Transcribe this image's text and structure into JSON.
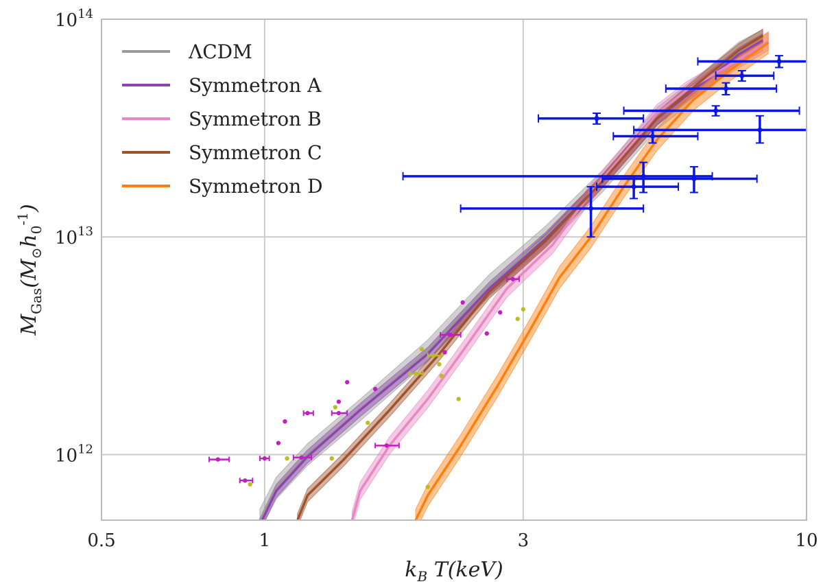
{
  "chart_data": {
    "type": "line",
    "xlabel": "k_B T(keV)",
    "ylabel": "M_Gas(M_⊙ h_0^-1)",
    "x_scale": "log",
    "y_scale": "log",
    "xlim": [
      0.5,
      10
    ],
    "ylim": [
      500000000000.0,
      100000000000000.0
    ],
    "x_ticks": [
      0.5,
      1,
      3,
      10
    ],
    "x_tick_labels": [
      "0.5",
      "1",
      "3",
      "10"
    ],
    "y_ticks": [
      1000000000000.0,
      10000000000000.0,
      100000000000000.0
    ],
    "y_tick_labels": [
      {
        "base": "10",
        "exp": "12"
      },
      {
        "base": "10",
        "exp": "13"
      },
      {
        "base": "10",
        "exp": "14"
      }
    ],
    "grid": true,
    "legend_position": "top-left",
    "series": [
      {
        "name": "ΛCDM",
        "color": "#999999",
        "band_halfwidth": 0.05,
        "x": [
          0.98,
          1.05,
          1.2,
          1.5,
          2.0,
          2.6,
          3.3,
          4.2,
          5.3,
          6.5,
          7.5,
          8.3
        ],
        "y": [
          500000000000.0,
          700000000000.0,
          1000000000000.0,
          1600000000000.0,
          3000000000000.0,
          6000000000000.0,
          10000000000000.0,
          18000000000000.0,
          35000000000000.0,
          52000000000000.0,
          70000000000000.0,
          80000000000000.0
        ]
      },
      {
        "name": "Symmetron A",
        "color": "#8e44ad",
        "band_halfwidth": 0.03,
        "x": [
          0.99,
          1.05,
          1.2,
          1.5,
          2.0,
          2.6,
          3.3,
          4.2,
          5.3,
          6.5,
          7.5,
          8.3
        ],
        "y": [
          500000000000.0,
          680000000000.0,
          980000000000.0,
          1600000000000.0,
          2900000000000.0,
          5800000000000.0,
          9800000000000.0,
          18000000000000.0,
          35000000000000.0,
          52000000000000.0,
          69000000000000.0,
          80000000000000.0
        ]
      },
      {
        "name": "Symmetron B",
        "color": "#e788c2",
        "band_halfwidth": 0.04,
        "x": [
          1.45,
          1.5,
          1.7,
          2.0,
          2.3,
          2.8,
          3.4,
          4.0,
          4.6,
          5.3,
          6.0,
          7.0,
          8.5
        ],
        "y": [
          500000000000.0,
          680000000000.0,
          1100000000000.0,
          1800000000000.0,
          2900000000000.0,
          5800000000000.0,
          9200000000000.0,
          16000000000000.0,
          24000000000000.0,
          37000000000000.0,
          47000000000000.0,
          59000000000000.0,
          79000000000000.0
        ]
      },
      {
        "name": "Symmetron C",
        "color": "#a0522d",
        "band_halfwidth": 0.03,
        "x": [
          1.15,
          1.2,
          1.4,
          1.7,
          2.1,
          2.6,
          3.3,
          4.2,
          5.3,
          6.5,
          7.5,
          8.3
        ],
        "y": [
          500000000000.0,
          650000000000.0,
          950000000000.0,
          1600000000000.0,
          2900000000000.0,
          5600000000000.0,
          9600000000000.0,
          18000000000000.0,
          35000000000000.0,
          54000000000000.0,
          72000000000000.0,
          84000000000000.0
        ]
      },
      {
        "name": "Symmetron D",
        "color": "#ff7f0e",
        "band_halfwidth": 0.05,
        "x": [
          1.9,
          2.0,
          2.3,
          2.7,
          3.1,
          3.5,
          4.0,
          4.6,
          5.3,
          6.2,
          7.2,
          8.5
        ],
        "y": [
          500000000000.0,
          650000000000.0,
          1100000000000.0,
          2100000000000.0,
          3800000000000.0,
          6500000000000.0,
          10000000000000.0,
          17000000000000.0,
          28000000000000.0,
          43000000000000.0,
          58000000000000.0,
          78000000000000.0
        ]
      }
    ],
    "data_points": [
      {
        "group": "blue",
        "color": "#0a16e8",
        "points": [
          {
            "x": 8.9,
            "y": 64000000000000.0,
            "xlo": 6.3,
            "xhi": 10.0,
            "ylo": 60000000000000.0,
            "yhi": 68000000000000.0
          },
          {
            "x": 7.6,
            "y": 55000000000000.0,
            "xlo": 6.8,
            "xhi": 8.7,
            "ylo": 52000000000000.0,
            "yhi": 58000000000000.0
          },
          {
            "x": 7.1,
            "y": 48000000000000.0,
            "xlo": 5.5,
            "xhi": 8.8,
            "ylo": 45000000000000.0,
            "yhi": 51000000000000.0
          },
          {
            "x": 6.8,
            "y": 38000000000000.0,
            "xlo": 4.6,
            "xhi": 9.7,
            "ylo": 36000000000000.0,
            "yhi": 40000000000000.0
          },
          {
            "x": 4.1,
            "y": 35000000000000.0,
            "xlo": 3.2,
            "xhi": 5.0,
            "ylo": 33000000000000.0,
            "yhi": 37000000000000.0
          },
          {
            "x": 5.2,
            "y": 29000000000000.0,
            "xlo": 4.4,
            "xhi": 6.3,
            "ylo": 27000000000000.0,
            "yhi": 31000000000000.0
          },
          {
            "x": 8.2,
            "y": 31000000000000.0,
            "xlo": 4.8,
            "xhi": 10.0,
            "ylo": 27000000000000.0,
            "yhi": 36000000000000.0
          },
          {
            "x": 5.0,
            "y": 19000000000000.0,
            "xlo": 1.8,
            "xhi": 6.7,
            "ylo": 16000000000000.0,
            "yhi": 22000000000000.0
          },
          {
            "x": 6.2,
            "y": 18500000000000.0,
            "xlo": 4.2,
            "xhi": 8.1,
            "ylo": 16000000000000.0,
            "yhi": 21000000000000.0
          },
          {
            "x": 4.8,
            "y": 17000000000000.0,
            "xlo": 4.1,
            "xhi": 5.8,
            "ylo": 15000000000000.0,
            "yhi": 19000000000000.0
          },
          {
            "x": 4.0,
            "y": 13500000000000.0,
            "xlo": 2.3,
            "xhi": 5.0,
            "ylo": 10000000000000.0,
            "yhi": 17000000000000.0
          }
        ]
      },
      {
        "group": "magenta",
        "color": "#c020c0",
        "points": [
          {
            "x": 0.82,
            "y": 950000000000.0,
            "xlo": 0.79,
            "xhi": 0.86
          },
          {
            "x": 1.0,
            "y": 960000000000.0,
            "xlo": 0.98,
            "xhi": 1.02
          },
          {
            "x": 1.17,
            "y": 970000000000.0,
            "xlo": 1.13,
            "xhi": 1.22
          },
          {
            "x": 0.92,
            "y": 760000000000.0,
            "xlo": 0.9,
            "xhi": 0.95
          },
          {
            "x": 1.06,
            "y": 1130000000000.0
          },
          {
            "x": 1.09,
            "y": 1420000000000.0
          },
          {
            "x": 1.2,
            "y": 1550000000000.0,
            "xlo": 1.18,
            "xhi": 1.23
          },
          {
            "x": 1.37,
            "y": 1550000000000.0,
            "xlo": 1.33,
            "xhi": 1.42
          },
          {
            "x": 1.37,
            "y": 1750000000000.0
          },
          {
            "x": 1.42,
            "y": 2150000000000.0
          },
          {
            "x": 1.6,
            "y": 2000000000000.0
          },
          {
            "x": 1.68,
            "y": 1100000000000.0,
            "xlo": 1.6,
            "xhi": 1.77
          },
          {
            "x": 2.2,
            "y": 3550000000000.0,
            "xlo": 2.11,
            "xhi": 2.3
          },
          {
            "x": 2.15,
            "y": 2950000000000.0
          },
          {
            "x": 2.32,
            "y": 5000000000000.0
          },
          {
            "x": 2.57,
            "y": 3600000000000.0
          },
          {
            "x": 2.72,
            "y": 4500000000000.0
          },
          {
            "x": 2.87,
            "y": 6400000000000.0,
            "xlo": 2.8,
            "xhi": 2.95
          }
        ]
      },
      {
        "group": "olive",
        "color": "#bcbd22",
        "points": [
          {
            "x": 0.94,
            "y": 730000000000.0
          },
          {
            "x": 1.1,
            "y": 960000000000.0
          },
          {
            "x": 1.33,
            "y": 960000000000.0
          },
          {
            "x": 1.35,
            "y": 1650000000000.0
          },
          {
            "x": 1.55,
            "y": 1400000000000.0
          },
          {
            "x": 1.9,
            "y": 2350000000000.0,
            "xlo": 1.85,
            "xhi": 1.96
          },
          {
            "x": 1.95,
            "y": 3050000000000.0
          },
          {
            "x": 2.05,
            "y": 2850000000000.0,
            "xlo": 2.0,
            "xhi": 2.12
          },
          {
            "x": 2.1,
            "y": 2600000000000.0
          },
          {
            "x": 2.12,
            "y": 2300000000000.0
          },
          {
            "x": 2.28,
            "y": 1800000000000.0
          },
          {
            "x": 2.0,
            "y": 710000000000.0
          },
          {
            "x": 2.93,
            "y": 4200000000000.0
          },
          {
            "x": 3.0,
            "y": 4650000000000.0
          }
        ]
      }
    ]
  }
}
